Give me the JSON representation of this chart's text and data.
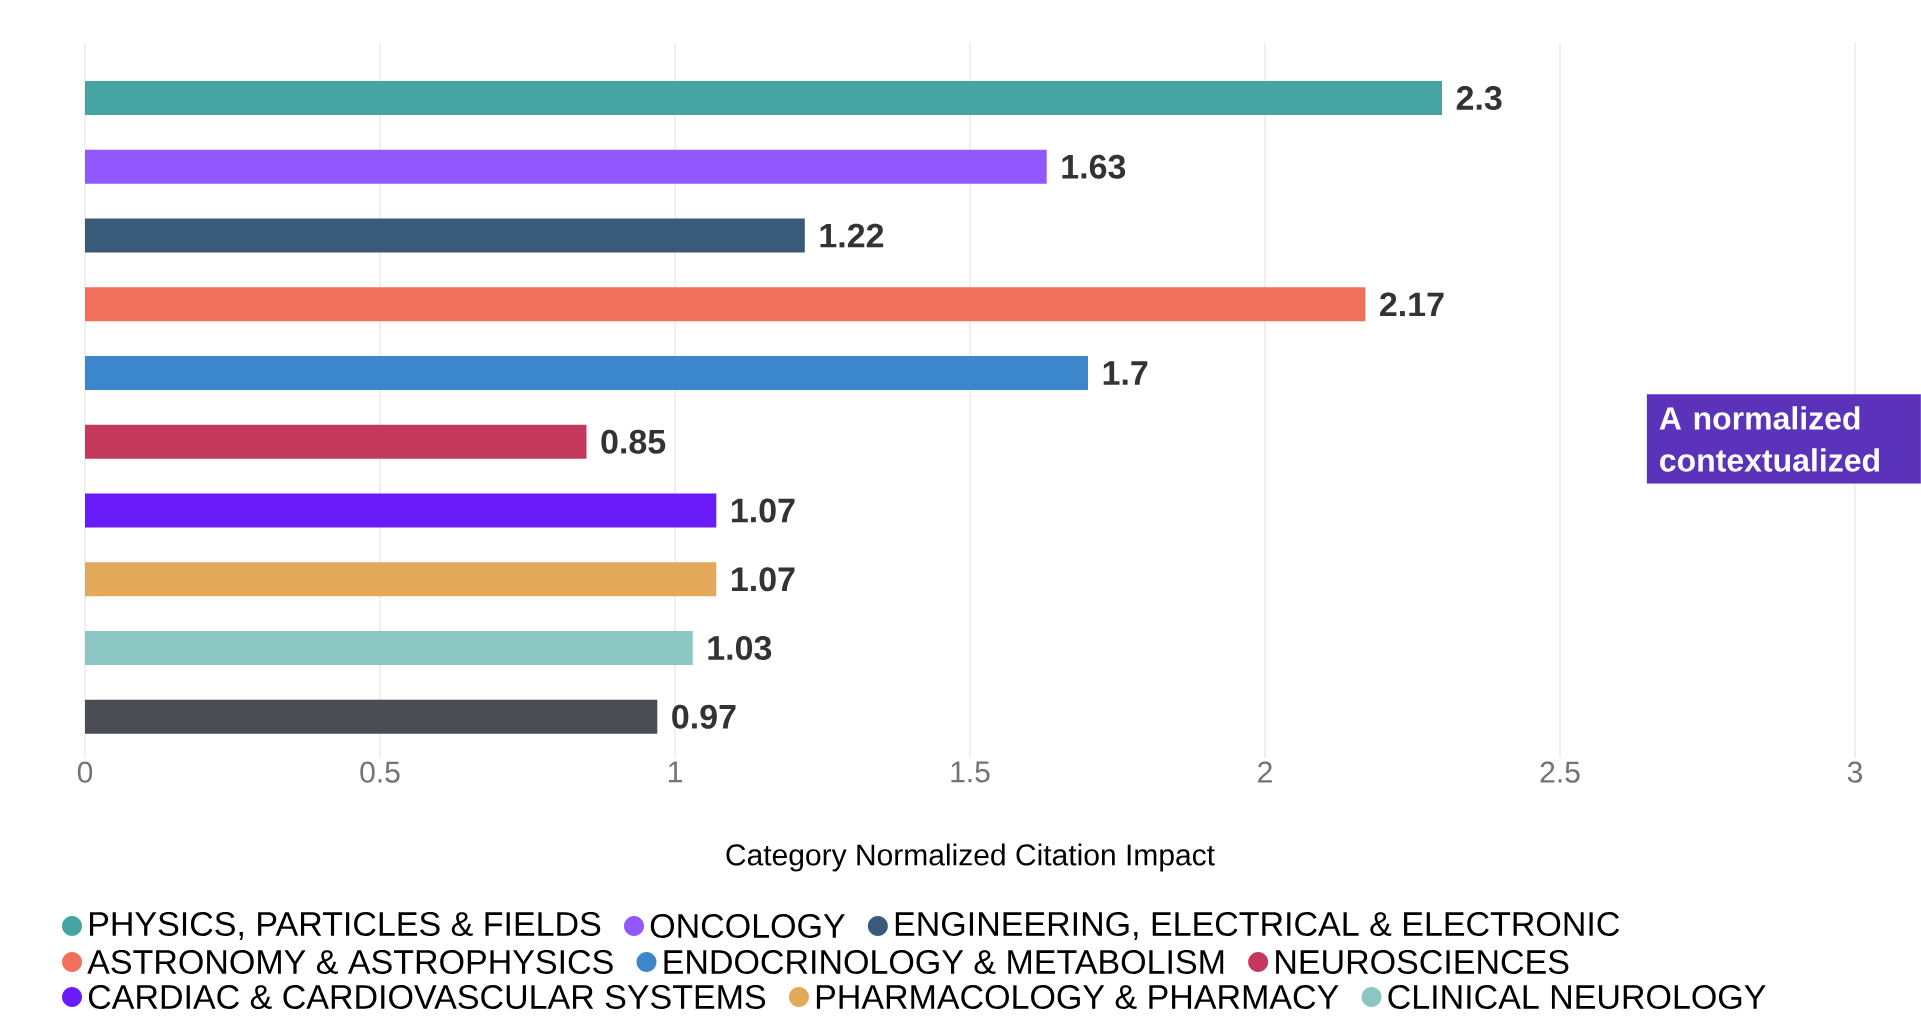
{
  "chart_data": {
    "type": "bar",
    "orientation": "horizontal",
    "xlabel": "Category Normalized Citation Impact",
    "categories": [
      null,
      null,
      null,
      null,
      null,
      null,
      null,
      null,
      null,
      null
    ],
    "series": [
      {
        "name": "PHYSICS, PARTICLES & FIELDS",
        "color": "#45a4a1",
        "values": [
          2.3,
          null,
          null,
          null,
          null,
          null,
          null,
          null,
          null,
          null
        ]
      },
      {
        "name": "ONCOLOGY",
        "color": "#9257fd",
        "values": [
          null,
          1.63,
          null,
          null,
          null,
          null,
          null,
          null,
          null,
          null
        ]
      },
      {
        "name": "ENGINEERING, ELECTRICAL & ELECTRONIC",
        "color": "#3a5a7a",
        "values": [
          null,
          null,
          1.22,
          null,
          null,
          null,
          null,
          null,
          null,
          null
        ]
      },
      {
        "name": "ASTRONOMY & ASTROPHYSICS",
        "color": "#f0705c",
        "values": [
          null,
          null,
          null,
          2.17,
          null,
          null,
          null,
          null,
          null,
          null
        ]
      },
      {
        "name": "ENDOCRINOLOGY & METABOLISM",
        "color": "#3c87cc",
        "values": [
          null,
          null,
          null,
          null,
          1.7,
          null,
          null,
          null,
          null,
          null
        ]
      },
      {
        "name": "NEUROSCIENCES",
        "color": "#c4385e",
        "values": [
          null,
          null,
          null,
          null,
          null,
          0.85,
          null,
          null,
          null,
          null
        ]
      },
      {
        "name": "CARDIAC & CARDIOVASCULAR SYSTEMS",
        "color": "#6a1bfa",
        "values": [
          null,
          null,
          null,
          null,
          null,
          null,
          1.07,
          null,
          null,
          null
        ]
      },
      {
        "name": "PHARMACOLOGY & PHARMACY",
        "color": "#e3a95a",
        "values": [
          null,
          null,
          null,
          null,
          null,
          null,
          null,
          1.07,
          null,
          null
        ]
      },
      {
        "name": "CLINICAL NEUROLOGY",
        "color": "#8cc6c3",
        "values": [
          null,
          null,
          null,
          null,
          null,
          null,
          null,
          null,
          1.03,
          null
        ]
      },
      {
        "color": "#4a4d54",
        "values": [
          null,
          null,
          null,
          null,
          null,
          null,
          null,
          null,
          null,
          0.97
        ]
      }
    ],
    "xlim": [
      0,
      3
    ],
    "xticks": [
      0,
      0.5,
      1,
      1.5,
      2,
      2.5,
      3
    ],
    "grid": "x",
    "legend": "bottom",
    "data_labels": true,
    "annotations": [
      "A normalized contextualized"
    ]
  }
}
